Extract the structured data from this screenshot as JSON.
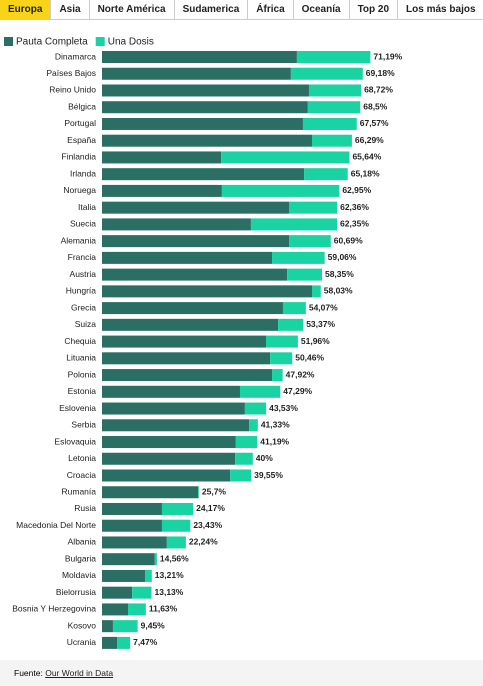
{
  "tabs": [
    "Europa",
    "Asia",
    "Norte América",
    "Sudamerica",
    "África",
    "Oceanía",
    "Top 20",
    "Los más bajos"
  ],
  "active_tab": 0,
  "source": {
    "label": "Fuente:",
    "link": "Our World in Data"
  },
  "chart_data": {
    "type": "stacked-barh",
    "categories": [
      "Dinamarca",
      "Países Bajos",
      "Reino Unido",
      "Bélgica",
      "Portugal",
      "España",
      "Finlandia",
      "Irlanda",
      "Noruega",
      "Italia",
      "Suecia",
      "Alemania",
      "Francia",
      "Austria",
      "Hungría",
      "Grecia",
      "Suiza",
      "Chequia",
      "Lituania",
      "Polonia",
      "Estonia",
      "Eslovenia",
      "Serbia",
      "Eslovaquia",
      "Letonia",
      "Croacia",
      "Rumanía",
      "Rusia",
      "Macedonia Del Norte",
      "Albania",
      "Bulgaria",
      "Moldavia",
      "Bielorrusia",
      "Bosnia Y Herzegovina",
      "Kosovo",
      "Ucrania"
    ],
    "series": [
      {
        "name": "Pauta Completa",
        "color": "#2b6e63",
        "values": [
          51.7,
          50.1,
          54.9,
          54.6,
          53.3,
          55.7,
          31.6,
          53.6,
          31.8,
          49.6,
          39.5,
          49.6,
          45.1,
          49.1,
          55.7,
          48.0,
          46.7,
          43.5,
          44.6,
          45.1,
          36.6,
          37.9,
          39.0,
          35.5,
          35.3,
          34.0,
          25.5,
          15.9,
          15.9,
          17.2,
          14.0,
          11.4,
          8.0,
          6.9,
          2.9,
          4.0
        ]
      },
      {
        "name": "Una Dosis",
        "color": "#1ad3a2",
        "values": [
          19.49,
          19.08,
          13.82,
          13.9,
          14.27,
          10.59,
          34.04,
          11.58,
          31.15,
          12.76,
          22.85,
          11.09,
          13.96,
          9.25,
          2.33,
          6.07,
          6.67,
          8.46,
          5.86,
          2.82,
          10.69,
          5.63,
          2.33,
          5.69,
          4.7,
          5.55,
          0.2,
          8.27,
          7.53,
          5.04,
          0.56,
          1.81,
          5.13,
          4.73,
          6.55,
          3.47
        ]
      }
    ],
    "totals": {
      "values": [
        71.19,
        69.18,
        68.72,
        68.5,
        67.57,
        66.29,
        65.64,
        65.18,
        62.95,
        62.36,
        62.35,
        60.69,
        59.06,
        58.35,
        58.03,
        54.07,
        53.37,
        51.96,
        50.46,
        47.92,
        47.29,
        43.53,
        41.33,
        41.19,
        40,
        39.55,
        25.7,
        24.17,
        23.43,
        22.24,
        14.56,
        13.21,
        13.13,
        11.63,
        9.45,
        7.47
      ],
      "value_labels": [
        "71,19%",
        "69,18%",
        "68,72%",
        "68,5%",
        "67,57%",
        "66,29%",
        "65,64%",
        "65,18%",
        "62,95%",
        "62,36%",
        "62,35%",
        "60,69%",
        "59,06%",
        "58,35%",
        "58,03%",
        "54,07%",
        "53,37%",
        "51,96%",
        "50,46%",
        "47,92%",
        "47,29%",
        "43,53%",
        "41,33%",
        "41,19%",
        "40%",
        "39,55%",
        "25,7%",
        "24,17%",
        "23,43%",
        "22,24%",
        "14,56%",
        "13,21%",
        "13,13%",
        "11,63%",
        "9,45%",
        "7,47%"
      ]
    },
    "xlim": [
      0,
      100
    ]
  }
}
